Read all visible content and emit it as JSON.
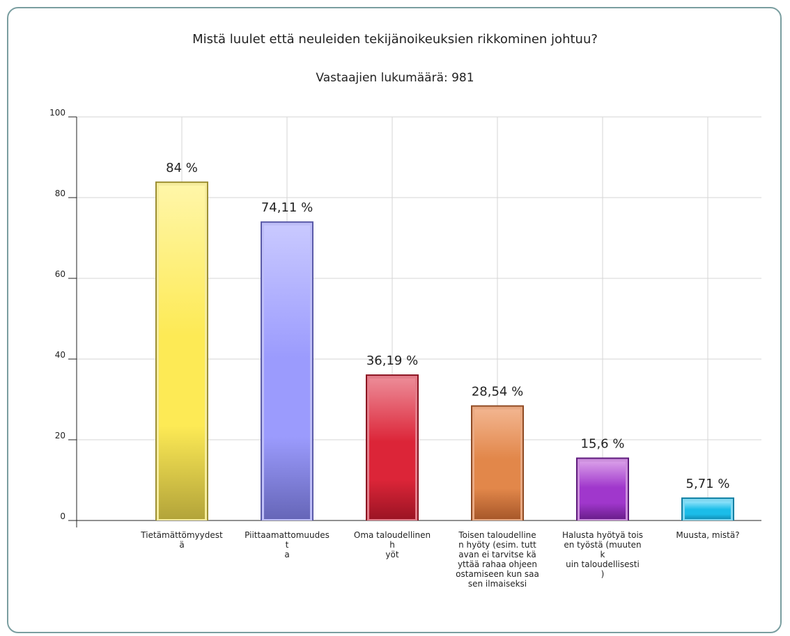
{
  "chart_data": {
    "type": "bar",
    "title": "Mistä luulet että neuleiden tekijänoikeuksien rikkominen johtuu?",
    "subtitle": "Vastaajien lukumäärä: 981",
    "ylim": [
      0,
      100
    ],
    "yticks": [
      "0",
      "20",
      "40",
      "60",
      "80",
      "100"
    ],
    "grid": true,
    "categories": [
      [
        "Tietämättömyydest",
        "ä"
      ],
      [
        "Piittaamattomuudes",
        "t",
        "a"
      ],
      [
        "Oma taloudellinen",
        "h",
        "yöt"
      ],
      [
        "Toisen taloudelline",
        "n hyöty (esim. tutt",
        "avan ei tarvitse kä",
        "yttää rahaa ohjeen",
        "ostamiseen kun saa",
        "sen ilmaiseksi"
      ],
      [
        "Halusta hyötyä tois",
        "en työstä (muuten",
        "k",
        "uin taloudellisesti",
        ")"
      ],
      [
        "Muusta, mistä?"
      ]
    ],
    "values": [
      84,
      74.11,
      36.19,
      28.54,
      15.6,
      5.71
    ],
    "value_labels": [
      "84 %",
      "74,11 %",
      "36,19 %",
      "28,54 %",
      "15,6 %",
      "5,71 %"
    ],
    "colors": [
      {
        "light": "#fff6a8",
        "mid": "#fdea55",
        "dark": "#b3a43a",
        "border": "#9c8f33"
      },
      {
        "light": "#c9c9ff",
        "mid": "#9b9bfd",
        "dark": "#6666b8",
        "border": "#5a5aa8"
      },
      {
        "light": "#ec8a96",
        "mid": "#dc2538",
        "dark": "#9c1424",
        "border": "#8a1220"
      },
      {
        "light": "#f2b48e",
        "mid": "#e2874a",
        "dark": "#a8582a",
        "border": "#8f4a22"
      },
      {
        "light": "#d89ce8",
        "mid": "#a037cc",
        "dark": "#6a1e8c",
        "border": "#5e1a7c"
      },
      {
        "light": "#8ee2fa",
        "mid": "#1bbde9",
        "dark": "#1290b8",
        "border": "#0f7fa3"
      }
    ]
  }
}
